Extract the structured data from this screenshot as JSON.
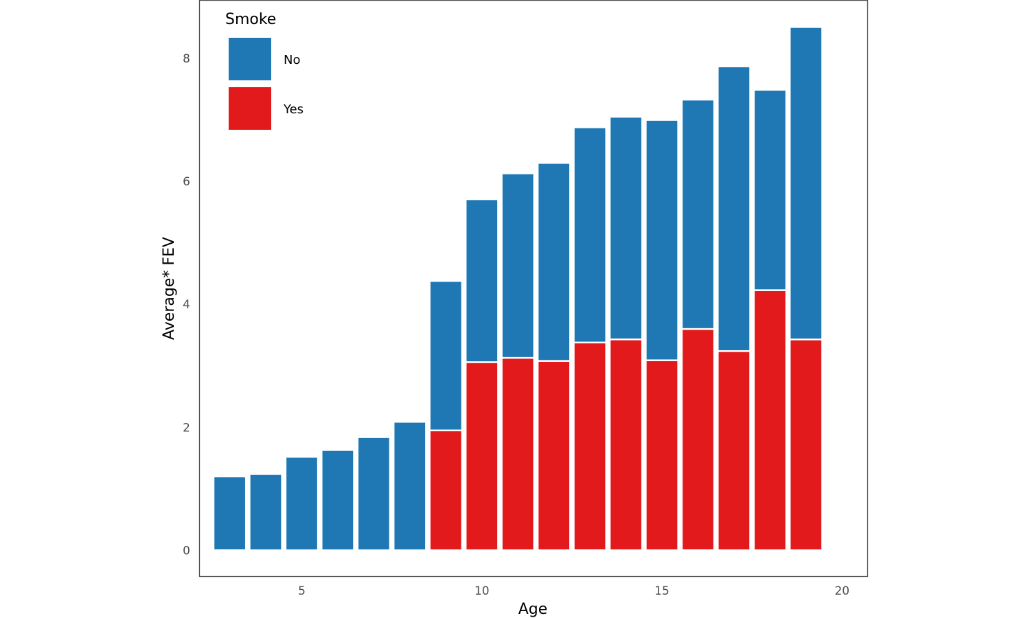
{
  "chart_data": {
    "type": "bar",
    "stacked": true,
    "title": "",
    "xlabel": "Age",
    "ylabel": "Average* FEV",
    "x": [
      3,
      4,
      5,
      6,
      7,
      8,
      9,
      10,
      11,
      12,
      13,
      14,
      15,
      16,
      17,
      18,
      19
    ],
    "series": [
      {
        "name": "Yes",
        "color": "#E31A1C",
        "values": [
          0,
          0,
          0,
          0,
          0,
          0,
          1.95,
          3.06,
          3.13,
          3.08,
          3.38,
          3.43,
          3.09,
          3.6,
          3.24,
          4.23,
          3.43
        ]
      },
      {
        "name": "No",
        "color": "#1F78B4",
        "values": [
          1.2,
          1.24,
          1.52,
          1.63,
          1.84,
          2.09,
          2.43,
          2.65,
          3.0,
          3.22,
          3.5,
          3.62,
          3.91,
          3.73,
          4.63,
          3.26,
          5.08
        ]
      }
    ],
    "xticks": [
      5,
      10,
      15,
      20
    ],
    "yticks": [
      0,
      2,
      4,
      6,
      8
    ],
    "xlim": [
      2.15,
      20.7
    ],
    "ylim": [
      -0.42,
      8.95
    ],
    "legend": {
      "title": "Smoke",
      "position": "top-left",
      "entries": [
        {
          "label": "No",
          "color": "#1F78B4"
        },
        {
          "label": "Yes",
          "color": "#E31A1C"
        }
      ]
    },
    "grid": false
  }
}
